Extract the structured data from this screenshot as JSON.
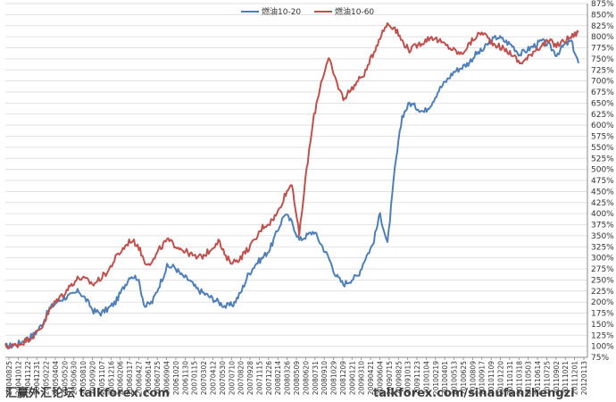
{
  "chart_data": {
    "type": "line",
    "title": "",
    "xlabel": "",
    "ylabel": "",
    "ylim": [
      75,
      875
    ],
    "y_ticks": [
      "875%",
      "850%",
      "825%",
      "800%",
      "775%",
      "750%",
      "725%",
      "700%",
      "675%",
      "650%",
      "625%",
      "600%",
      "575%",
      "550%",
      "525%",
      "500%",
      "475%",
      "450%",
      "425%",
      "400%",
      "375%",
      "350%",
      "325%",
      "300%",
      "275%",
      "250%",
      "225%",
      "200%",
      "175%",
      "150%",
      "125%",
      "100%",
      "75%"
    ],
    "x_ticks": [
      "20040825",
      "20041012",
      "20041122",
      "20041231",
      "20050222",
      "20050404",
      "20050520",
      "20050630",
      "20050810",
      "20050920",
      "20051107",
      "20051216",
      "20060206",
      "20060317",
      "20060427",
      "20060614",
      "20060725",
      "20060904",
      "20061020",
      "20061130",
      "20070115",
      "20070302",
      "20070412",
      "20070530",
      "20070710",
      "20070820",
      "20070928",
      "20071115",
      "20071226",
      "20080214",
      "20080326",
      "20080509",
      "20080620",
      "20080731",
      "20080910",
      "20081029",
      "20081209",
      "20090121",
      "20090310",
      "20090421",
      "20090604",
      "20090715",
      "20090825",
      "20091013",
      "20091123",
      "20100104",
      "20100219",
      "20100401",
      "20100513",
      "20100625",
      "20100809",
      "20100917",
      "20101109",
      "20101220",
      "20110131",
      "20110318",
      "20110503",
      "20110614",
      "20110725",
      "20110902",
      "20111021",
      "20111201",
      "20120113"
    ],
    "legend": {
      "placement": "top-center"
    },
    "grid": {
      "y": true,
      "x": false
    },
    "series": [
      {
        "name": "燃油10-20",
        "color": "#4f7fb8",
        "values": [
          100,
          102,
          108,
          118,
          128,
          150,
          185,
          200,
          210,
          215,
          225,
          205,
          180,
          175,
          185,
          200,
          230,
          260,
          255,
          190,
          200,
          240,
          280,
          280,
          260,
          250,
          230,
          220,
          210,
          200,
          190,
          195,
          220,
          260,
          285,
          300,
          320,
          360,
          400,
          380,
          340,
          350,
          360,
          330,
          300,
          260,
          240,
          250,
          260,
          300,
          330,
          400,
          330,
          500,
          620,
          650,
          640,
          630,
          650,
          680,
          700,
          720,
          730,
          740,
          760,
          770,
          790,
          800,
          790,
          780,
          760,
          770,
          780,
          790,
          780,
          760,
          780,
          790,
          740
        ]
      },
      {
        "name": "燃油10-60",
        "color": "#c0504d",
        "values": [
          100,
          101,
          105,
          115,
          126,
          145,
          180,
          205,
          220,
          240,
          255,
          250,
          240,
          255,
          270,
          300,
          320,
          340,
          330,
          290,
          290,
          320,
          340,
          330,
          320,
          310,
          300,
          305,
          320,
          340,
          300,
          290,
          300,
          320,
          340,
          370,
          380,
          400,
          440,
          470,
          350,
          500,
          620,
          700,
          750,
          700,
          660,
          680,
          700,
          720,
          760,
          800,
          830,
          820,
          790,
          770,
          780,
          790,
          800,
          790,
          780,
          770,
          760,
          780,
          800,
          810,
          790,
          780,
          770,
          760,
          740,
          750,
          770,
          780,
          790,
          780,
          790,
          800,
          810
        ]
      }
    ]
  },
  "watermark": {
    "left_text": "汇赢外汇论坛 talkforex.com",
    "right_text": "talkforex.com/sinaufanzhengzi"
  }
}
